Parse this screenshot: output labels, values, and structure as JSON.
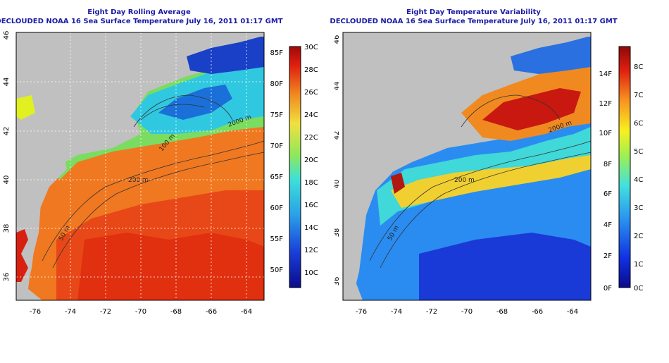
{
  "left_panel": {
    "title": "Eight Day Rolling Average",
    "subtitle": "DECLOUDED NOAA 16 Sea Surface Temperature July 16, 2011 01:17 GMT",
    "colorbar": {
      "fahrenheit_labels": [
        "85F",
        "80F",
        "75F",
        "70F",
        "65F",
        "60F",
        "55F",
        "50F"
      ],
      "celsius_labels": [
        "30C",
        "28C",
        "26C",
        "24C",
        "22C",
        "20C",
        "18C",
        "16C",
        "14C",
        "12C",
        "10C"
      ],
      "range_celsius": [
        8.5,
        30
      ]
    },
    "contours": [
      "50 m",
      "100 m",
      "200 m",
      "2000 m"
    ]
  },
  "right_panel": {
    "title": "Eight Day Temperature Variability",
    "subtitle": "DECLOUDED NOAA 16 Sea Surface Temperature July 16, 2011 01:17 GMT",
    "colorbar": {
      "fahrenheit_labels": [
        "14F",
        "12F",
        "10F",
        "8F",
        "6F",
        "4F",
        "2F",
        "0F"
      ],
      "celsius_labels": [
        "8C",
        "7C",
        "6C",
        "5C",
        "4C",
        "3C",
        "2C",
        "1C",
        "0C"
      ],
      "range_celsius": [
        0,
        8.7
      ]
    },
    "contours": [
      "50 m",
      "200 m",
      "2000 m"
    ]
  },
  "axes": {
    "lon_labels": [
      "-76",
      "-74",
      "-72",
      "-70",
      "-68",
      "-66",
      "-64"
    ],
    "lat_labels": [
      "46",
      "44",
      "42",
      "40",
      "38",
      "36"
    ],
    "lon_range": [
      -77.3,
      -62.9
    ],
    "lat_range": [
      35,
      46
    ]
  },
  "colors": {
    "title_blue": "#1a1aa6",
    "land_gray": "#c0c0c0"
  }
}
